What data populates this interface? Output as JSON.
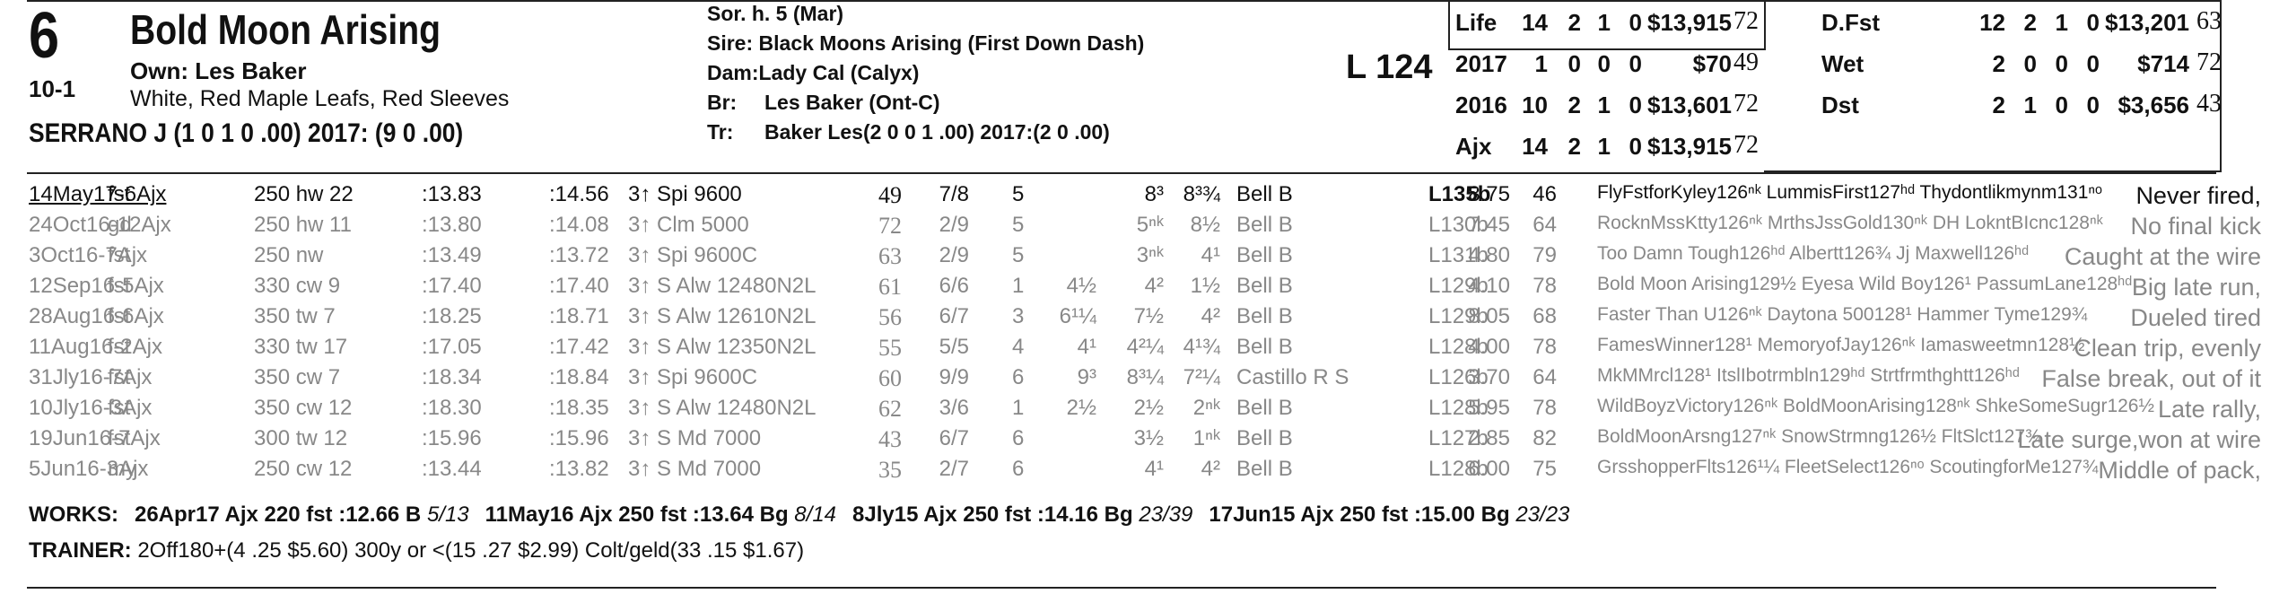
{
  "horse": {
    "program_number": "6",
    "odds": "10-1",
    "name": "Bold Moon Arising",
    "owner": "Own: Les Baker",
    "silks": "White, Red Maple Leafs, Red Sleeves",
    "jockey": "SERRANO J (1 0 1 0 .00) 2017: (9 0 .00)",
    "sex_age": "Sor. h. 5 (Mar)",
    "sire": "Sire: Black Moons Arising (First Down Dash)",
    "dam_label": "Dam:",
    "dam": "Lady Cal (Calyx)",
    "breeder_label": "Br:",
    "breeder": "Les Baker (Ont-C)",
    "trainer_label": "Tr:",
    "trainer": "Baker Les(2 0 0 1 .00)  2017:(2 0 .00)",
    "lasix_weight": "L 124"
  },
  "stats_left": [
    {
      "label": "Life",
      "starts": "14",
      "w": "2",
      "p": "1",
      "s": "0",
      "earnings": "$13,915",
      "speed": "72"
    },
    {
      "label": "2017",
      "starts": "1",
      "w": "0",
      "p": "0",
      "s": "0",
      "earnings": "$70",
      "speed": "49"
    },
    {
      "label": "2016",
      "starts": "10",
      "w": "2",
      "p": "1",
      "s": "0",
      "earnings": "$13,601",
      "speed": "72"
    },
    {
      "label": "Ajx",
      "starts": "14",
      "w": "2",
      "p": "1",
      "s": "0",
      "earnings": "$13,915",
      "speed": "72"
    }
  ],
  "stats_right": [
    {
      "label": "D.Fst",
      "starts": "12",
      "w": "2",
      "p": "1",
      "s": "0",
      "earnings": "$13,201",
      "speed": "63"
    },
    {
      "label": "Wet",
      "starts": "2",
      "w": "0",
      "p": "0",
      "s": "0",
      "earnings": "$714",
      "speed": "72"
    },
    {
      "label": "Dst",
      "starts": "2",
      "w": "1",
      "p": "0",
      "s": "0",
      "earnings": "$3,656",
      "speed": "43"
    }
  ],
  "past_performances": [
    {
      "date": "14May17-6Ajx",
      "cond": "fst",
      "dist": "250 hw 22",
      "f1": ":13.83",
      "f2": ":14.56",
      "race": "3↑ Spi 9600",
      "spd": "49",
      "pp": "7/8",
      "st": "5",
      "c1": "",
      "c2": "8³",
      "fin": "8³¾",
      "jockey": "Bell B",
      "wt": "L135b",
      "odds": "8.75",
      "sr": "46",
      "top3": "FlyFstforKyley126ⁿᵏ LummisFirst127ʰᵈ Thydontlikmynm131ⁿᵒ",
      "comment": "Never fired,"
    },
    {
      "date": "24Oct16-12Ajx",
      "cond": "gd",
      "dist": "250 hw 11",
      "f1": ":13.80",
      "f2": ":14.08",
      "race": "3↑ Clm 5000",
      "spd": "72",
      "pp": "2/9",
      "st": "5",
      "c1": "",
      "c2": "5ⁿᵏ",
      "fin": "8½",
      "jockey": "Bell B",
      "wt": "L130b",
      "odds": "7.45",
      "sr": "64",
      "top3": "RocknMssKtty126ⁿᵏ MrthsJssGold130ⁿᵏ DH LokntBIcnc128ⁿᵏ",
      "comment": "No final kick"
    },
    {
      "date": "3Oct16-7Ajx",
      "cond": "fst",
      "dist": "250 nw",
      "f1": ":13.49",
      "f2": ":13.72",
      "race": "3↑ Spi 9600C",
      "spd": "63",
      "pp": "2/9",
      "st": "5",
      "c1": "",
      "c2": "3ⁿᵏ",
      "fin": "4¹",
      "jockey": "Bell B",
      "wt": "L131b",
      "odds": "4.80",
      "sr": "79",
      "top3": "Too Damn Tough126ʰᵈ Albertt126¾ Jj Maxwell126ʰᵈ",
      "comment": "Caught at the wire"
    },
    {
      "date": "12Sep16-5Ajx",
      "cond": "fst",
      "dist": "330 cw 9",
      "f1": ":17.40",
      "f2": ":17.40",
      "race": "3↑ S Alw 12480N2L",
      "spd": "61",
      "pp": "6/6",
      "st": "1",
      "c1": "4½",
      "c2": "4²",
      "fin": "1½",
      "jockey": "Bell B",
      "wt": "L129b",
      "odds": "4.10",
      "sr": "78",
      "top3": "Bold Moon Arising129½ Eyesa Wild Boy126¹ PassumLane128ʰᵈ",
      "comment": "Big late run,"
    },
    {
      "date": "28Aug16-6Ajx",
      "cond": "fst",
      "dist": "350 tw 7",
      "f1": ":18.25",
      "f2": ":18.71",
      "race": "3↑ S Alw 12610N2L",
      "spd": "56",
      "pp": "6/7",
      "st": "3",
      "c1": "6¹¼",
      "c2": "7½",
      "fin": "4²",
      "jockey": "Bell B",
      "wt": "L129b",
      "odds": "8.05",
      "sr": "68",
      "top3": "Faster Than U126ⁿᵏ Daytona 500128¹ Hammer Tyme129¾",
      "comment": "Dueled tired"
    },
    {
      "date": "11Aug16-2Ajx",
      "cond": "fst",
      "dist": "330 tw 17",
      "f1": ":17.05",
      "f2": ":17.42",
      "race": "3↑ S Alw 12350N2L",
      "spd": "55",
      "pp": "5/5",
      "st": "4",
      "c1": "4¹",
      "c2": "4²¼",
      "fin": "4¹¾",
      "jockey": "Bell B",
      "wt": "L128b",
      "odds": "4.00",
      "sr": "78",
      "top3": "FamesWinner128¹ MemoryofJay126ⁿᵏ Iamasweetmn128½",
      "comment": "Clean trip, evenly"
    },
    {
      "date": "31Jly16-7Ajx",
      "cond": "fst",
      "dist": "350 cw 7",
      "f1": ":18.34",
      "f2": ":18.84",
      "race": "3↑ Spi 9600C",
      "spd": "60",
      "pp": "9/9",
      "st": "6",
      "c1": "9³",
      "c2": "8³¼",
      "fin": "7²¼",
      "jockey": "Castillo R S",
      "wt": "L126b",
      "odds": "3.70",
      "sr": "64",
      "top3": "MkMMrcl128¹ ItslIbotrmbln129ʰᵈ Strtfrmthghtt126ʰᵈ",
      "comment": "False break, out of it"
    },
    {
      "date": "10Jly16-3Ajx",
      "cond": "fst",
      "dist": "350 cw 12",
      "f1": ":18.30",
      "f2": ":18.35",
      "race": "3↑ S Alw 12480N2L",
      "spd": "62",
      "pp": "3/6",
      "st": "1",
      "c1": "2½",
      "c2": "2½",
      "fin": "2ⁿᵏ",
      "jockey": "Bell B",
      "wt": "L128b",
      "odds": "5.95",
      "sr": "78",
      "top3": "WildBoyzVictory126ⁿᵏ BoldMoonArising128ⁿᵏ ShkeSomeSugr126½",
      "comment": "Late rally,"
    },
    {
      "date": "19Jun16-7Ajx",
      "cond": "fst",
      "dist": "300 tw 12",
      "f1": ":15.96",
      "f2": ":15.96",
      "race": "3↑ S Md 7000",
      "spd": "43",
      "pp": "6/7",
      "st": "6",
      "c1": "",
      "c2": "3½",
      "fin": "1ⁿᵏ",
      "jockey": "Bell B",
      "wt": "L127b",
      "odds": "2.85",
      "sr": "82",
      "top3": "BoldMoonArsng127ⁿᵏ SnowStrmng126½ FltSlct127¾",
      "comment": "Late surge,won at wire"
    },
    {
      "date": "5Jun16-3Ajx",
      "cond": "my",
      "dist": "250 cw 12",
      "f1": ":13.44",
      "f2": ":13.82",
      "race": "3↑ S Md 7000",
      "spd": "35",
      "pp": "2/7",
      "st": "6",
      "c1": "",
      "c2": "4¹",
      "fin": "4²",
      "jockey": "Bell B",
      "wt": "L128b",
      "odds": "6.00",
      "sr": "75",
      "top3": "GrsshopperFlts126¹¼ FleetSelect126ⁿᵒ ScoutingforMe127¾",
      "comment": "Middle of pack,"
    }
  ],
  "works": {
    "label": "WORKS:",
    "items": [
      {
        "text": "26Apr17 Ajx 220 fst :12.66 B",
        "rank": "5/13"
      },
      {
        "text": "11May16 Ajx 250 fst :13.64 Bg",
        "rank": "8/14"
      },
      {
        "text": "8Jly15 Ajx 250 fst :14.16 Bg",
        "rank": "23/39"
      },
      {
        "text": "17Jun15 Ajx 250 fst :15.00 Bg",
        "rank": "23/23"
      }
    ]
  },
  "trainer_stats": {
    "label": "TRAINER:",
    "text": "2Off180+(4 .25 $5.60) 300y or <(15 .27 $2.99) Colt/geld(33 .15 $1.67)"
  }
}
